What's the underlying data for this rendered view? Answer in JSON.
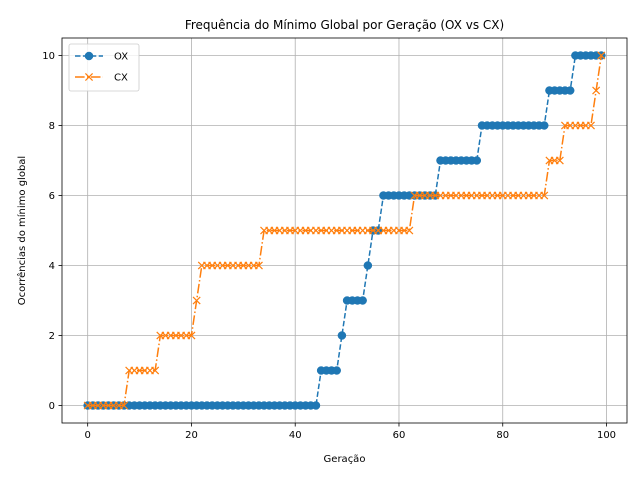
{
  "chart_data": {
    "type": "line",
    "title": "Frequência do Mínimo Global por Geração (OX vs CX)",
    "xlabel": "Geração",
    "ylabel": "Ocorrências do mínimo global",
    "xlim": [
      -4.95,
      103.95
    ],
    "ylim": [
      -0.5,
      10.5
    ],
    "xticks": [
      0,
      20,
      40,
      60,
      80,
      100
    ],
    "yticks": [
      0,
      2,
      4,
      6,
      8,
      10
    ],
    "grid": true,
    "legend_position": "top-left",
    "series": [
      {
        "name": "OX",
        "color": "#1f77b4",
        "marker": "circle",
        "linestyle": "dashed",
        "x": [
          0,
          1,
          2,
          3,
          4,
          5,
          6,
          7,
          8,
          9,
          10,
          11,
          12,
          13,
          14,
          15,
          16,
          17,
          18,
          19,
          20,
          21,
          22,
          23,
          24,
          25,
          26,
          27,
          28,
          29,
          30,
          31,
          32,
          33,
          34,
          35,
          36,
          37,
          38,
          39,
          40,
          41,
          42,
          43,
          44,
          45,
          46,
          47,
          48,
          49,
          50,
          51,
          52,
          53,
          54,
          55,
          56,
          57,
          58,
          59,
          60,
          61,
          62,
          63,
          64,
          65,
          66,
          67,
          68,
          69,
          70,
          71,
          72,
          73,
          74,
          75,
          76,
          77,
          78,
          79,
          80,
          81,
          82,
          83,
          84,
          85,
          86,
          87,
          88,
          89,
          90,
          91,
          92,
          93,
          94,
          95,
          96,
          97,
          98,
          99
        ],
        "values": [
          0,
          0,
          0,
          0,
          0,
          0,
          0,
          0,
          0,
          0,
          0,
          0,
          0,
          0,
          0,
          0,
          0,
          0,
          0,
          0,
          0,
          0,
          0,
          0,
          0,
          0,
          0,
          0,
          0,
          0,
          0,
          0,
          0,
          0,
          0,
          0,
          0,
          0,
          0,
          0,
          0,
          0,
          0,
          0,
          0,
          1,
          1,
          1,
          1,
          2,
          3,
          3,
          3,
          3,
          4,
          5,
          5,
          6,
          6,
          6,
          6,
          6,
          6,
          6,
          6,
          6,
          6,
          6,
          7,
          7,
          7,
          7,
          7,
          7,
          7,
          7,
          8,
          8,
          8,
          8,
          8,
          8,
          8,
          8,
          8,
          8,
          8,
          8,
          8,
          9,
          9,
          9,
          9,
          9,
          10,
          10,
          10,
          10,
          10,
          10
        ]
      },
      {
        "name": "CX",
        "color": "#ff7f0e",
        "marker": "x",
        "linestyle": "dashdot",
        "x": [
          0,
          1,
          2,
          3,
          4,
          5,
          6,
          7,
          8,
          9,
          10,
          11,
          12,
          13,
          14,
          15,
          16,
          17,
          18,
          19,
          20,
          21,
          22,
          23,
          24,
          25,
          26,
          27,
          28,
          29,
          30,
          31,
          32,
          33,
          34,
          35,
          36,
          37,
          38,
          39,
          40,
          41,
          42,
          43,
          44,
          45,
          46,
          47,
          48,
          49,
          50,
          51,
          52,
          53,
          54,
          55,
          56,
          57,
          58,
          59,
          60,
          61,
          62,
          63,
          64,
          65,
          66,
          67,
          68,
          69,
          70,
          71,
          72,
          73,
          74,
          75,
          76,
          77,
          78,
          79,
          80,
          81,
          82,
          83,
          84,
          85,
          86,
          87,
          88,
          89,
          90,
          91,
          92,
          93,
          94,
          95,
          96,
          97,
          98,
          99
        ],
        "values": [
          0,
          0,
          0,
          0,
          0,
          0,
          0,
          0,
          1,
          1,
          1,
          1,
          1,
          1,
          2,
          2,
          2,
          2,
          2,
          2,
          2,
          3,
          4,
          4,
          4,
          4,
          4,
          4,
          4,
          4,
          4,
          4,
          4,
          4,
          5,
          5,
          5,
          5,
          5,
          5,
          5,
          5,
          5,
          5,
          5,
          5,
          5,
          5,
          5,
          5,
          5,
          5,
          5,
          5,
          5,
          5,
          5,
          5,
          5,
          5,
          5,
          5,
          5,
          6,
          6,
          6,
          6,
          6,
          6,
          6,
          6,
          6,
          6,
          6,
          6,
          6,
          6,
          6,
          6,
          6,
          6,
          6,
          6,
          6,
          6,
          6,
          6,
          6,
          6,
          7,
          7,
          7,
          8,
          8,
          8,
          8,
          8,
          8,
          9,
          10
        ]
      }
    ]
  }
}
